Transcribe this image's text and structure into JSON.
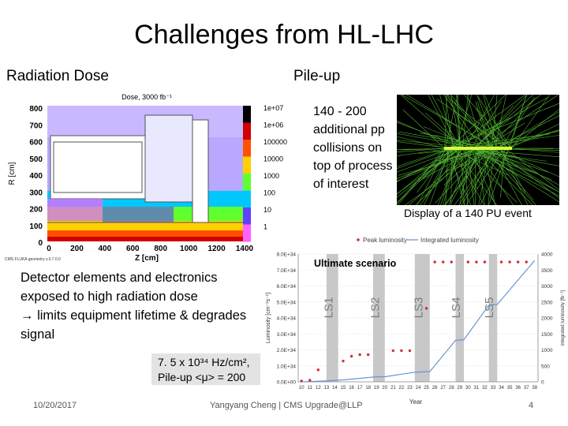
{
  "slide": {
    "title": "Challenges from HL-LHC",
    "radiation_heading": "Radiation Dose",
    "pileup_heading": "Pile-up",
    "pileup_text": "140 - 200 additional pp collisions on top of process of interest",
    "pileup_caption": "Display of a 140 PU event",
    "detector_text_1": "Detector elements and electronics exposed to high radiation dose",
    "detector_text_2": "→ limits equipment lifetime & degrades signal",
    "luminosity_formula": "7. 5 x 10³⁴ Hz/cm²,",
    "pileup_formula": "Pile-up <μ> = 200"
  },
  "footer": {
    "date": "10/20/2017",
    "author": "Yangyang Cheng | CMS Upgrade@LLP",
    "page": "4"
  },
  "radiation_map": {
    "title": "Dose, 3000 fb⁻¹",
    "ylabel": "R [cm]",
    "xlabel": "Z [cm]",
    "yticks": [
      "800",
      "700",
      "600",
      "500",
      "400",
      "300",
      "200",
      "100",
      "0"
    ],
    "xticks": [
      "0",
      "200",
      "400",
      "600",
      "800",
      "1000",
      "1200",
      "1400"
    ],
    "colorbar": [
      "1e+07",
      "1e+06",
      "100000",
      "10000",
      "1000",
      "100",
      "10",
      "1"
    ],
    "colorbar_colors": [
      "#000000",
      "#d00000",
      "#ff5000",
      "#ffd000",
      "#60ff30",
      "#00c8ff",
      "#6040ff",
      "#ff60ff"
    ],
    "credit": "CMS FLUKA geometry v.3.7.0.0"
  },
  "chart_data": {
    "type": "scatter",
    "title": "Ultimate scenario",
    "legend": [
      "Peak luminosity",
      "Integrated luminosity"
    ],
    "xlabel": "Year",
    "ylabel": "Luminosity [cm⁻²s⁻¹]",
    "y2label": "integrated luminosity [fb⁻¹]",
    "x": [
      10,
      11,
      12,
      13,
      14,
      15,
      16,
      17,
      18,
      19,
      20,
      21,
      22,
      23,
      24,
      25,
      26,
      27,
      28,
      29,
      30,
      31,
      32,
      33,
      34,
      35,
      36,
      37,
      38
    ],
    "x_labels": [
      "10",
      "11",
      "12",
      "13",
      "14",
      "15",
      "16",
      "17",
      "18",
      "19",
      "20",
      "21",
      "22",
      "23",
      "24",
      "25",
      "26",
      "27",
      "28",
      "29",
      "30",
      "31",
      "32",
      "33",
      "34",
      "35",
      "36",
      "37",
      "38"
    ],
    "y_ticks": [
      "0.0E+00",
      "1.0E+34",
      "2.0E+34",
      "3.0E+34",
      "4.0E+34",
      "5.0E+34",
      "6.0E+34",
      "7.0E+34",
      "8.0E+34"
    ],
    "y2_ticks": [
      "0",
      "500",
      "1000",
      "1500",
      "2000",
      "2500",
      "3000",
      "3500",
      "4000"
    ],
    "ylim": [
      0,
      8e+34
    ],
    "y2lim": [
      0,
      4000
    ],
    "shutdowns": [
      {
        "label": "LS1",
        "from": 13,
        "to": 14.4
      },
      {
        "label": "LS2",
        "from": 18.6,
        "to": 20
      },
      {
        "label": "LS3",
        "from": 23.6,
        "to": 25.4
      },
      {
        "label": "LS4",
        "from": 28.5,
        "to": 29.5
      },
      {
        "label": "LS5",
        "from": 32.5,
        "to": 33.5
      }
    ],
    "peak_luminosity": [
      {
        "x": 10,
        "y": 5e+32
      },
      {
        "x": 11,
        "y": 1e+33
      },
      {
        "x": 12,
        "y": 7.5e+33
      },
      {
        "x": 15,
        "y": 1.3e+34
      },
      {
        "x": 16,
        "y": 1.6e+34
      },
      {
        "x": 17,
        "y": 1.7e+34
      },
      {
        "x": 18,
        "y": 1.7e+34
      },
      {
        "x": 21,
        "y": 1.95e+34
      },
      {
        "x": 22,
        "y": 1.95e+34
      },
      {
        "x": 23,
        "y": 1.95e+34
      },
      {
        "x": 25,
        "y": 4.6e+34
      },
      {
        "x": 26,
        "y": 7.5e+34
      },
      {
        "x": 27,
        "y": 7.5e+34
      },
      {
        "x": 28,
        "y": 7.5e+34
      },
      {
        "x": 30,
        "y": 7.5e+34
      },
      {
        "x": 31,
        "y": 7.5e+34
      },
      {
        "x": 32,
        "y": 7.5e+34
      },
      {
        "x": 34,
        "y": 7.5e+34
      },
      {
        "x": 35,
        "y": 7.5e+34
      },
      {
        "x": 36,
        "y": 7.5e+34
      },
      {
        "x": 37,
        "y": 7.5e+34
      }
    ],
    "integrated_luminosity": [
      {
        "x": 10,
        "y": 0
      },
      {
        "x": 13,
        "y": 30
      },
      {
        "x": 15,
        "y": 60
      },
      {
        "x": 18.6,
        "y": 150
      },
      {
        "x": 20,
        "y": 160
      },
      {
        "x": 23.6,
        "y": 300
      },
      {
        "x": 25.4,
        "y": 320
      },
      {
        "x": 28.5,
        "y": 1300
      },
      {
        "x": 29.5,
        "y": 1320
      },
      {
        "x": 32.5,
        "y": 2400
      },
      {
        "x": 33.5,
        "y": 2420
      },
      {
        "x": 38,
        "y": 3800
      }
    ]
  }
}
